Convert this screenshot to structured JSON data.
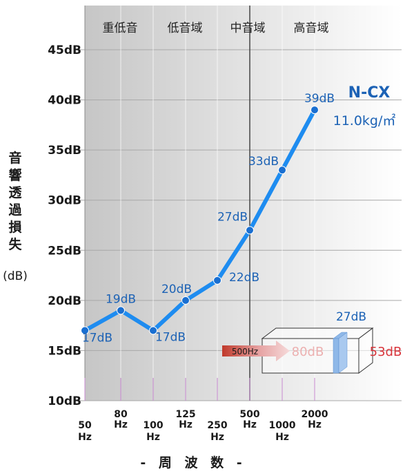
{
  "chart_data": {
    "type": "line",
    "title": "",
    "bands": [
      "重低音",
      "低音域",
      "中音域",
      "高音域"
    ],
    "x_ticks": [
      {
        "value": "50",
        "unit": "Hz"
      },
      {
        "value": "80",
        "unit": "Hz"
      },
      {
        "value": "100",
        "unit": "Hz"
      },
      {
        "value": "125",
        "unit": "Hz"
      },
      {
        "value": "250",
        "unit": "Hz"
      },
      {
        "value": "500",
        "unit": "Hz"
      },
      {
        "value": "1000",
        "unit": "Hz"
      },
      {
        "value": "2000",
        "unit": "Hz"
      }
    ],
    "y_ticks": [
      "10dB",
      "15dB",
      "20dB",
      "25dB",
      "30dB",
      "35dB",
      "40dB",
      "45dB"
    ],
    "ylim": [
      10,
      45
    ],
    "ylabel": "音響透過損失",
    "ylabel_unit": "(dB)",
    "xlabel": "- 周 波 数 -",
    "series": [
      {
        "name": "N-CX",
        "subtitle": "11.0kg/㎡",
        "color": "#1e8cf0",
        "x": [
          "50Hz",
          "80Hz",
          "100Hz",
          "125Hz",
          "250Hz",
          "500Hz",
          "1000Hz",
          "2000Hz"
        ],
        "values": [
          17,
          19,
          17,
          20,
          22,
          27,
          33,
          39
        ],
        "labels": [
          "17dB",
          "19dB",
          "17dB",
          "20dB",
          "22dB",
          "27dB",
          "33dB",
          "39dB"
        ]
      }
    ],
    "grid": true,
    "inset": {
      "source_label": "500Hz",
      "source_level": "80dB",
      "panel_loss": "27dB",
      "result_level": "53dB"
    }
  }
}
